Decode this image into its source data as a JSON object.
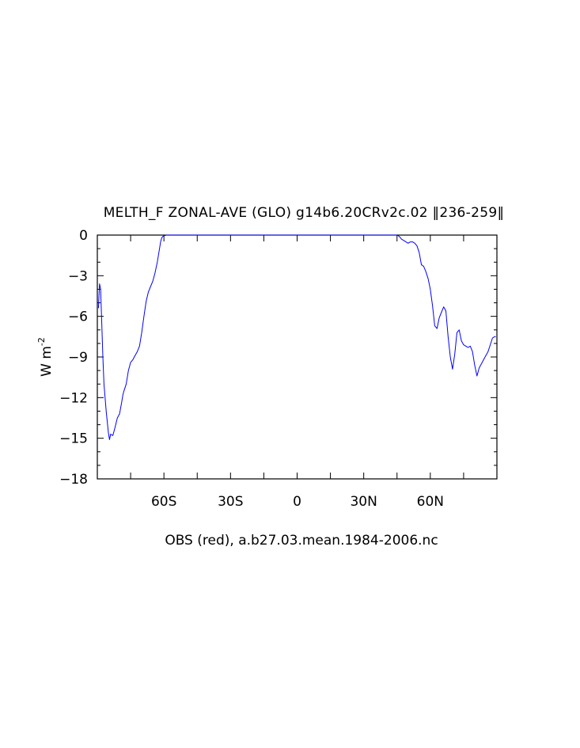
{
  "chart_data": {
    "type": "line",
    "title": "MELTH_F ZONAL-AVE (GLO) g14b6.20CRv2c.02 ‖236-259‖",
    "xlabel": "OBS (red), a.b27.03.mean.1984-2006.nc",
    "ylabel_base": "W m",
    "ylabel_exponent": "-2",
    "xlim": [
      -90,
      90
    ],
    "ylim": [
      -18,
      0
    ],
    "xticks": [
      {
        "value": -60,
        "label": "60S"
      },
      {
        "value": -30,
        "label": "30S"
      },
      {
        "value": 0,
        "label": "0"
      },
      {
        "value": 30,
        "label": "30N"
      },
      {
        "value": 60,
        "label": "60N"
      }
    ],
    "yticks": [
      {
        "value": 0,
        "label": "0"
      },
      {
        "value": -3,
        "label": "−3"
      },
      {
        "value": -6,
        "label": "−6"
      },
      {
        "value": -9,
        "label": "−9"
      },
      {
        "value": -12,
        "label": "−12"
      },
      {
        "value": -15,
        "label": "−15"
      },
      {
        "value": -18,
        "label": "−18"
      }
    ],
    "grid": false,
    "colors": {
      "series": "#0000ff",
      "axes": "#000000",
      "text": "#000000"
    },
    "series": [
      {
        "color": "#0000ff",
        "x": [
          -89.5,
          -89.0,
          -88.5,
          -88.0,
          -87.5,
          -87.0,
          -86.0,
          -85.0,
          -84.5,
          -84.0,
          -83.0,
          -82.0,
          -81.0,
          -80.0,
          -79.0,
          -78.5,
          -78.0,
          -77.0,
          -76.0,
          -75.0,
          -74.0,
          -73.0,
          -72.0,
          -71.0,
          -70.0,
          -69.0,
          -68.0,
          -67.0,
          -66.0,
          -65.0,
          -64.0,
          -63.0,
          -62.0,
          -61.5,
          -61.0,
          -60.5,
          -60.0,
          -59.0,
          -58.5,
          -58.0,
          -57.0,
          -56.0,
          -55.0,
          -52.0,
          -50.0,
          -40.0,
          -20.0,
          0.0,
          20.0,
          40.0,
          45.0,
          46.0,
          47.0,
          48.0,
          49.0,
          50.0,
          51.0,
          52.0,
          53.0,
          54.0,
          55.0,
          56.0,
          57.0,
          58.0,
          59.0,
          60.0,
          61.0,
          62.0,
          63.0,
          64.0,
          65.0,
          66.0,
          67.0,
          68.0,
          69.0,
          70.0,
          71.0,
          72.0,
          73.0,
          74.0,
          75.0,
          76.0,
          77.0,
          78.0,
          79.0,
          80.0,
          81.0,
          82.0,
          83.0,
          84.0,
          85.0,
          86.0,
          87.0,
          88.0,
          89.0,
          89.5
        ],
        "y": [
          -5.4,
          -3.6,
          -4.0,
          -6.5,
          -9.0,
          -11.0,
          -13.0,
          -14.6,
          -15.1,
          -14.7,
          -14.8,
          -14.2,
          -13.5,
          -13.2,
          -12.3,
          -11.8,
          -11.5,
          -11.0,
          -10.0,
          -9.4,
          -9.2,
          -8.9,
          -8.6,
          -8.2,
          -7.2,
          -6.0,
          -4.9,
          -4.2,
          -3.8,
          -3.4,
          -2.8,
          -2.0,
          -1.0,
          -0.5,
          -0.2,
          -0.1,
          -0.05,
          0.0,
          0.0,
          0.0,
          0.0,
          0.0,
          0.0,
          0.0,
          0.0,
          0.0,
          0.0,
          0.0,
          0.0,
          0.0,
          0.0,
          -0.1,
          -0.3,
          -0.4,
          -0.5,
          -0.6,
          -0.5,
          -0.5,
          -0.6,
          -0.8,
          -1.3,
          -2.2,
          -2.3,
          -2.7,
          -3.2,
          -4.0,
          -5.2,
          -6.7,
          -6.9,
          -6.1,
          -5.7,
          -5.3,
          -5.6,
          -7.5,
          -9.0,
          -9.9,
          -8.8,
          -7.2,
          -7.0,
          -7.8,
          -8.1,
          -8.2,
          -8.3,
          -8.2,
          -8.6,
          -9.6,
          -10.4,
          -9.8,
          -9.5,
          -9.2,
          -8.9,
          -8.6,
          -8.1,
          -7.6,
          -7.5,
          -7.5
        ]
      }
    ]
  }
}
